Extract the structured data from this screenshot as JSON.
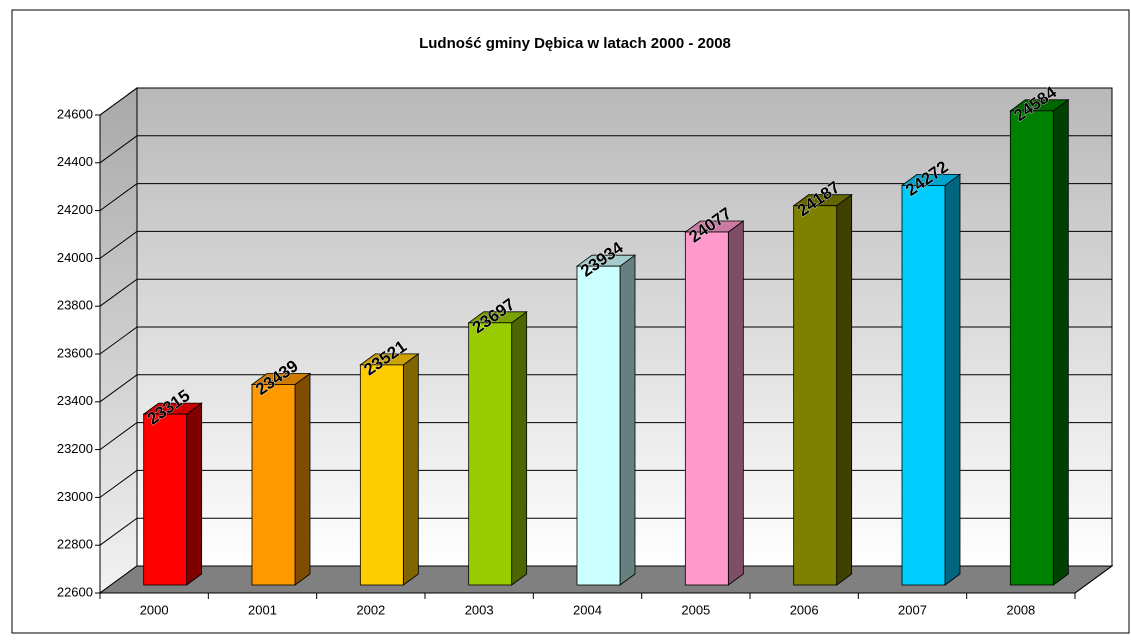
{
  "chart_data": {
    "type": "bar3d",
    "title": "Ludność gminy Dębica w latach 2000 - 2008",
    "categories": [
      "2000",
      "2001",
      "2002",
      "2003",
      "2004",
      "2005",
      "2006",
      "2007",
      "2008"
    ],
    "values": [
      23315,
      23439,
      23521,
      23697,
      23934,
      24077,
      24187,
      24272,
      24584
    ],
    "colors": [
      "#ff0000",
      "#ff9900",
      "#ffcc00",
      "#99cc00",
      "#ccffff",
      "#ff99cc",
      "#808000",
      "#00ccff",
      "#008000"
    ],
    "ylim": [
      22600,
      24600
    ],
    "yticks": [
      22600,
      22800,
      23000,
      23200,
      23400,
      23600,
      23800,
      24000,
      24200,
      24400,
      24600
    ],
    "grid": true
  }
}
